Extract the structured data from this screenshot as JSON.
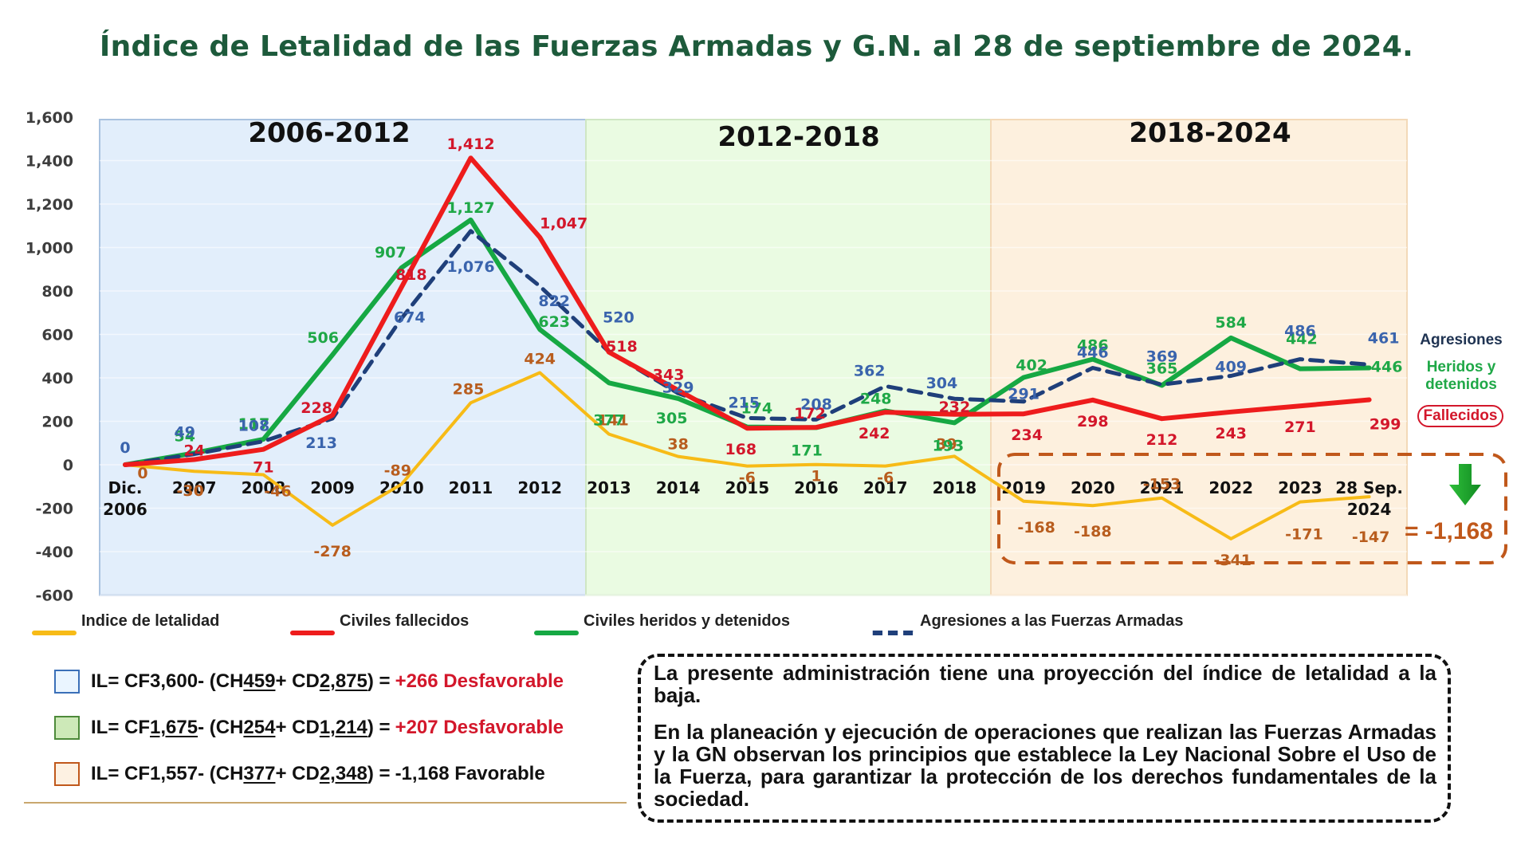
{
  "title": "Índice de Letalidad de las Fuerzas Armadas y G.N. al 28 de septiembre de 2024.",
  "chart_data": {
    "type": "line",
    "title": "Índice de Letalidad de las Fuerzas Armadas y G.N. al 28 de septiembre de 2024.",
    "xlabel": "",
    "ylabel": "",
    "ylim": [
      -600,
      1600
    ],
    "yticks": [
      1600,
      1400,
      1200,
      1000,
      800,
      600,
      400,
      200,
      0,
      -200,
      -400,
      -600
    ],
    "ytick_labels": [
      "1,600",
      "1,400",
      "1,200",
      "1,000",
      "800",
      "600",
      "400",
      "200",
      "0",
      "-200",
      "-400",
      "-600"
    ],
    "grid": true,
    "categories": [
      "Dic. 2006",
      "2007",
      "2008",
      "2009",
      "2010",
      "2011",
      "2012",
      "2013",
      "2014",
      "2015",
      "2016",
      "2017",
      "2018",
      "2019",
      "2020",
      "2021",
      "2022",
      "2023",
      "28 Sep. 2024"
    ],
    "periods": [
      {
        "label": "2006-2012",
        "from": 0,
        "to": 6,
        "color": "#e2eefb"
      },
      {
        "label": "2012-2018",
        "from": 6,
        "to": 12,
        "color": "#eafbe2"
      },
      {
        "label": "2018-2024",
        "from": 12,
        "to": 18,
        "color": "#fdf0de"
      }
    ],
    "series": [
      {
        "name": "Indice de letalidad",
        "color": "#f7bb17",
        "label_color": "#b85d1e",
        "dashed": false,
        "values": [
          0,
          -30,
          -46,
          -278,
          -89,
          285,
          424,
          141,
          38,
          -6,
          1,
          -6,
          39,
          -168,
          -188,
          -153,
          -341,
          -171,
          -147
        ]
      },
      {
        "name": "Civiles fallecidos",
        "color": "#ee1c1c",
        "label_color": "#d3172b",
        "dashed": false,
        "values": [
          0,
          24,
          71,
          228,
          818,
          1412,
          1047,
          518,
          343,
          168,
          172,
          242,
          232,
          234,
          298,
          212,
          243,
          271,
          299
        ]
      },
      {
        "name": "Civiles heridos y detenidos",
        "color": "#16a843",
        "label_color": "#1fa847",
        "dashed": false,
        "values": [
          0,
          54,
          117,
          506,
          907,
          1127,
          623,
          377,
          305,
          174,
          171,
          248,
          193,
          402,
          486,
          365,
          584,
          442,
          446
        ]
      },
      {
        "name": "Agresiones a las Fuerzas Armadas",
        "color": "#1f3f7a",
        "label_color": "#3a64ad",
        "dashed": true,
        "values": [
          0,
          49,
          108,
          213,
          674,
          1076,
          822,
          520,
          329,
          215,
          208,
          362,
          304,
          291,
          446,
          369,
          409,
          486,
          461
        ]
      }
    ],
    "value_labels": {
      "Indice de letalidad": [
        "0",
        "-30",
        "-46",
        "-278",
        "-89",
        "285",
        "424",
        "141",
        "38",
        "-6",
        "1",
        "-6",
        "39",
        "-168",
        "-188",
        "-153",
        "-341",
        "-171",
        "-147"
      ],
      "Civiles fallecidos": [
        "",
        "24",
        "71",
        "228",
        "818",
        "1,412",
        "1,047",
        "518",
        "343",
        "168",
        "172",
        "242",
        "232",
        "234",
        "298",
        "212",
        "243",
        "271",
        "299"
      ],
      "Civiles heridos y detenidos": [
        "",
        "54",
        "117",
        "506",
        "907",
        "1,127",
        "623",
        "377",
        "305",
        "174",
        "171",
        "248",
        "193",
        "402",
        "486",
        "365",
        "584",
        "442",
        "446"
      ],
      "Agresiones a las Fuerzas Armadas": [
        "0",
        "49",
        "108",
        "213",
        "674",
        "1,076",
        "822",
        "520",
        "329",
        "215",
        "208",
        "362",
        "304",
        "291",
        "446",
        "369",
        "409",
        "486",
        "461"
      ]
    },
    "legend_position": "bottom",
    "annotations": {
      "side_labels": [
        "Agresiones",
        "Heridos y detenidos",
        "Fallecidos"
      ],
      "total_highlight": "= -1,168",
      "arrow": "down"
    }
  },
  "legend": [
    {
      "label": "Indice de letalidad",
      "color": "#f7bb17",
      "dashed": false
    },
    {
      "label": "Civiles fallecidos",
      "color": "#ee1c1c",
      "dashed": false
    },
    {
      "label": "Civiles heridos y detenidos",
      "color": "#16a843",
      "dashed": false
    },
    {
      "label": "Agresiones a las Fuerzas Armadas",
      "color": "#1f3f7a",
      "dashed": true
    }
  ],
  "side_legend": {
    "agresiones": "Agresiones",
    "heridos": "Heridos y detenidos",
    "fallecidos": "Fallecidos"
  },
  "total": "= -1,168",
  "formulas": [
    {
      "box_fill": "#eaf5ff",
      "box_border": "#3a6fb8",
      "prefix": "IL= CF ",
      "cf": "3,600",
      "cf_underline": false,
      "mid1": " - (CH ",
      "ch": "459",
      "mid2": " + CD ",
      "cd": "2,875",
      "suffix": ") = ",
      "result": "+266 Desfavorable",
      "result_color": "red"
    },
    {
      "box_fill": "#cde9b8",
      "box_border": "#4d8a3a",
      "prefix": "IL= CF ",
      "cf": "1,675",
      "cf_underline": true,
      "mid1": " - (CH ",
      "ch": "254",
      "mid2": " + CD ",
      "cd": "1,214",
      "suffix": ") = ",
      "result": "+207 Desfavorable",
      "result_color": "red"
    },
    {
      "box_fill": "#fdf1e2",
      "box_border": "#c0581b",
      "prefix": "IL= CF ",
      "cf": "1,557",
      "cf_underline": false,
      "mid1": " - (CH ",
      "ch": "377 ",
      "mid2": "+ CD ",
      "cd": "2,348",
      "suffix": ") = ",
      "result": "-1,168 Favorable",
      "result_color": "dark"
    }
  ],
  "note": {
    "p1": "La presente administración tiene una proyección del índice de letalidad a la baja.",
    "p2": "En la planeación y ejecución de operaciones que realizan las Fuerzas Armadas y la GN observan los principios que establece la Ley Nacional Sobre el Uso de la Fuerza, para garantizar la protección de los derechos fundamentales de la sociedad."
  }
}
